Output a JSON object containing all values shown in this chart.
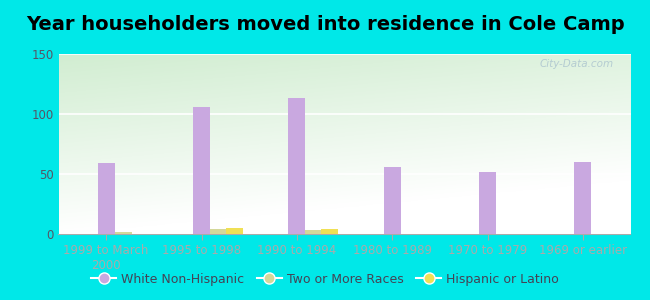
{
  "title": "Year householders moved into residence in Cole Camp",
  "categories": [
    "1999 to March\n2000",
    "1995 to 1998",
    "1990 to 1994",
    "1980 to 1989",
    "1970 to 1979",
    "1969 or earlier"
  ],
  "series": {
    "White Non-Hispanic": [
      59,
      106,
      113,
      56,
      52,
      60
    ],
    "Two or More Races": [
      2,
      4,
      3,
      0,
      0,
      0
    ],
    "Hispanic or Latino": [
      0,
      5,
      4,
      0,
      0,
      0
    ]
  },
  "colors": {
    "White Non-Hispanic": "#c9a8e0",
    "Two or More Races": "#d4d89a",
    "Hispanic or Latino": "#f0e055"
  },
  "ylim": [
    0,
    150
  ],
  "yticks": [
    0,
    50,
    100,
    150
  ],
  "background_outer": "#00e8e8",
  "watermark": "City-Data.com",
  "bar_width": 0.18,
  "title_fontsize": 14,
  "legend_fontsize": 9,
  "tick_fontsize": 8.5
}
